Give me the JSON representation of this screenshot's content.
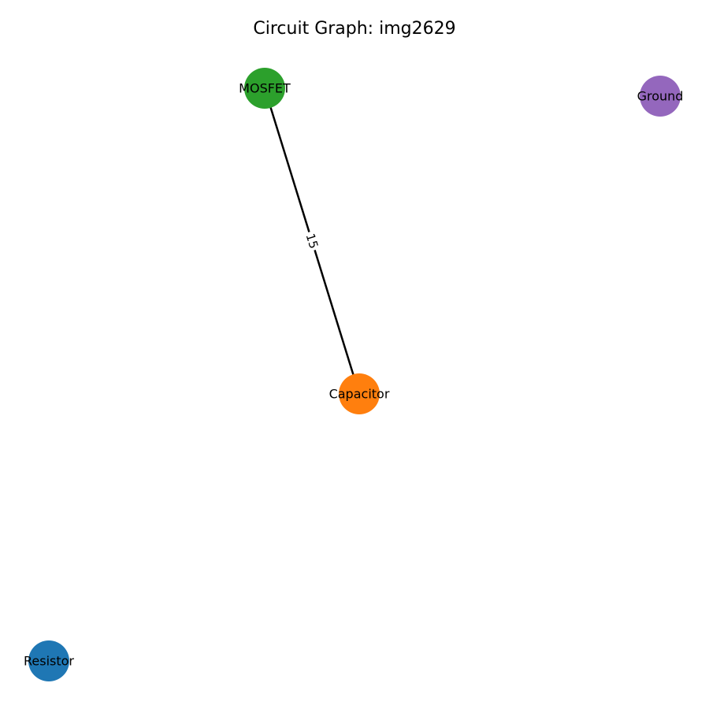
{
  "title": "Circuit Graph: img2629",
  "nodes": [
    {
      "id": "mosfet",
      "label": "MOSFET",
      "color": "#2ca02c"
    },
    {
      "id": "ground",
      "label": "Ground",
      "color": "#9467bd"
    },
    {
      "id": "capacitor",
      "label": "Capacitor",
      "color": "#ff7f0e"
    },
    {
      "id": "resistor",
      "label": "Resistor",
      "color": "#1f77b4"
    }
  ],
  "edges": [
    {
      "source": "mosfet",
      "target": "capacitor",
      "label": "15",
      "color": "#000000"
    }
  ]
}
